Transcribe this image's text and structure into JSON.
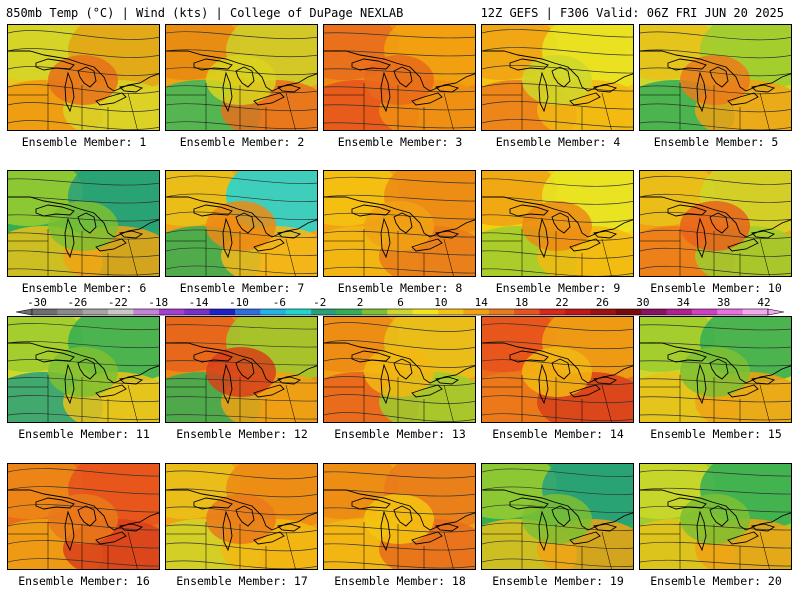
{
  "header": {
    "left": "850mb Temp (°C) | Wind (kts) | College of DuPage NEXLAB",
    "right": "12Z GEFS | F306 Valid: 06Z FRI JUN 20 2025"
  },
  "members": [
    {
      "label": "Ensemble Member: 1",
      "palette": [
        "#e8c81c",
        "#d1d629",
        "#e0a516",
        "#f0960f",
        "#d8d427",
        "#e6701a"
      ]
    },
    {
      "label": "Ensemble Member: 2",
      "palette": [
        "#f0a214",
        "#e88a12",
        "#cfcf2a",
        "#3ab85a",
        "#e8701c",
        "#d9d51f"
      ]
    },
    {
      "label": "Ensemble Member: 3",
      "palette": [
        "#ed8a14",
        "#e86c1c",
        "#f2a20f",
        "#e8521c",
        "#f09012",
        "#e76a1a"
      ]
    },
    {
      "label": "Ensemble Member: 4",
      "palette": [
        "#f4c410",
        "#f0a214",
        "#e8e624",
        "#ec7a1a",
        "#f2b812",
        "#cfd72a"
      ]
    },
    {
      "label": "Ensemble Member: 5",
      "palette": [
        "#cfd72a",
        "#e9c21a",
        "#9ccc2e",
        "#34ae55",
        "#f0a214",
        "#ec7a1a"
      ]
    },
    {
      "label": "Ensemble Member: 6",
      "palette": [
        "#34ae55",
        "#9ccc2e",
        "#28a07a",
        "#e9c21a",
        "#f0a214",
        "#7ec032"
      ]
    },
    {
      "label": "Ensemble Member: 7",
      "palette": [
        "#f0a214",
        "#e9c21a",
        "#1fd6d8",
        "#34ae55",
        "#f4b81a",
        "#ec8a14"
      ]
    },
    {
      "label": "Ensemble Member: 8",
      "palette": [
        "#f0a214",
        "#f4c410",
        "#ec8a14",
        "#f2b812",
        "#e97a1a",
        "#f0a214"
      ]
    },
    {
      "label": "Ensemble Member: 9",
      "palette": [
        "#f4d010",
        "#f0a214",
        "#e8e624",
        "#9ccc2e",
        "#f2b812",
        "#ec8a14"
      ]
    },
    {
      "label": "Ensemble Member: 10",
      "palette": [
        "#f0a214",
        "#e9c21a",
        "#cfd72a",
        "#ec7a1a",
        "#9ccc2e",
        "#e8621c"
      ]
    },
    {
      "label": "Ensemble Member: 11",
      "palette": [
        "#cfd72a",
        "#9ccc2e",
        "#34ae55",
        "#28a07a",
        "#e9c21a",
        "#7ec032"
      ]
    },
    {
      "label": "Ensemble Member: 12",
      "palette": [
        "#ec8a14",
        "#e8621c",
        "#9ccc2e",
        "#34ae55",
        "#f0a214",
        "#d8401a"
      ]
    },
    {
      "label": "Ensemble Member: 13",
      "palette": [
        "#f0a214",
        "#ec8a14",
        "#e9c21a",
        "#e8621c",
        "#9ccc2e",
        "#f2b812"
      ]
    },
    {
      "label": "Ensemble Member: 14",
      "palette": [
        "#e86c1c",
        "#e8521c",
        "#f0a214",
        "#ec7a1a",
        "#d8401a",
        "#f2b812"
      ]
    },
    {
      "label": "Ensemble Member: 15",
      "palette": [
        "#cfd72a",
        "#9ccc2e",
        "#34ae55",
        "#e9c21a",
        "#f0a214",
        "#7ec032"
      ]
    },
    {
      "label": "Ensemble Member: 16",
      "palette": [
        "#e86c1c",
        "#ec8a14",
        "#e8521c",
        "#f0a214",
        "#d8401a",
        "#e97a1a"
      ]
    },
    {
      "label": "Ensemble Member: 17",
      "palette": [
        "#f0a214",
        "#e9c21a",
        "#ec8a14",
        "#cfd72a",
        "#f2b812",
        "#e97a1a"
      ]
    },
    {
      "label": "Ensemble Member: 18",
      "palette": [
        "#f0a214",
        "#ec8a14",
        "#e97a1a",
        "#f2b812",
        "#e86c1c",
        "#f4c410"
      ]
    },
    {
      "label": "Ensemble Member: 19",
      "palette": [
        "#34ae55",
        "#9ccc2e",
        "#28a07a",
        "#e9c21a",
        "#f0a214",
        "#7ec032"
      ]
    },
    {
      "label": "Ensemble Member: 20",
      "palette": [
        "#9ccc2e",
        "#cfd72a",
        "#34ae55",
        "#e9c21a",
        "#f0a214",
        "#7ec032"
      ]
    }
  ],
  "colorbar": {
    "ticks": [
      "-30",
      "-26",
      "-22",
      "-18",
      "-14",
      "-10",
      "-6",
      "-2",
      "2",
      "6",
      "10",
      "14",
      "18",
      "22",
      "26",
      "30",
      "34",
      "38",
      "42"
    ],
    "colors": [
      "#6e6e6e",
      "#8a8a8a",
      "#a5a5a5",
      "#c8c8c8",
      "#c682d6",
      "#a63fd0",
      "#7a2fc8",
      "#2020c8",
      "#2e6ee0",
      "#22b4e6",
      "#20d6d0",
      "#28a07a",
      "#34ae55",
      "#7ec032",
      "#cfd72a",
      "#f4e41a",
      "#f4c410",
      "#f2a20f",
      "#ec7a1a",
      "#e8521c",
      "#d8281a",
      "#c01818",
      "#a01010",
      "#7a0a0a",
      "#8a1060",
      "#b02090",
      "#d040c0",
      "#e870e0",
      "#f4a8f0"
    ]
  }
}
